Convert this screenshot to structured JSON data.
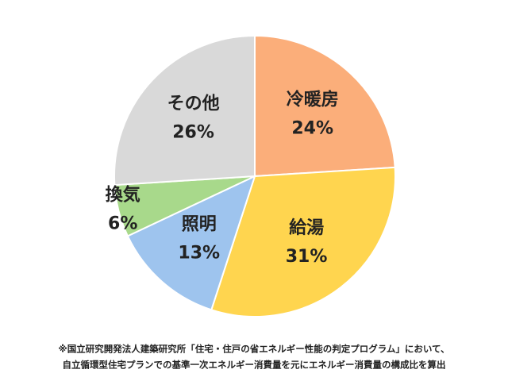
{
  "chart_data": {
    "type": "pie",
    "categories": [
      "冷暖房",
      "給湯",
      "照明",
      "換気",
      "その他"
    ],
    "values": [
      24,
      31,
      13,
      6,
      26
    ],
    "value_labels": [
      "24%",
      "31%",
      "13%",
      "6%",
      "26%"
    ],
    "colors": [
      "#FBAE7A",
      "#FFD54F",
      "#9EC4EE",
      "#A8D98B",
      "#D9D9D9"
    ],
    "notes": [
      "※国立研究開発法人建築研究所「住宅・住戸の省エネルギー性能の判定プログラム」において、",
      "自立循環型住宅プランでの基準一次エネルギー消費量を元にエネルギー消費量の構成比を算出"
    ]
  }
}
